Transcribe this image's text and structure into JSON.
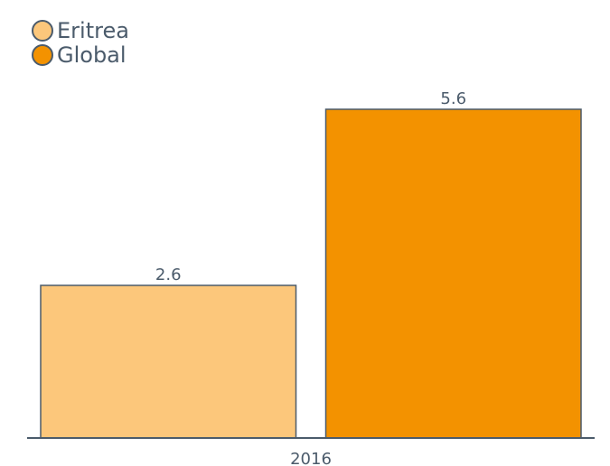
{
  "chart_data": {
    "type": "bar",
    "categories": [
      "2016"
    ],
    "series": [
      {
        "name": "Eritrea",
        "color": "#fcc77b",
        "values": [
          2.6
        ]
      },
      {
        "name": "Global",
        "color": "#f39200",
        "values": [
          5.6
        ]
      }
    ],
    "ylim": [
      0,
      6
    ],
    "legend": "top-left"
  }
}
